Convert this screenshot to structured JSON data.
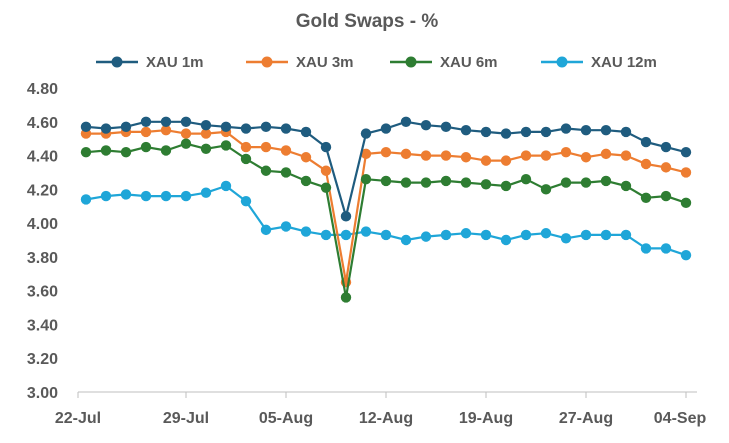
{
  "chart_data": {
    "type": "line",
    "title": "Gold Swaps - %",
    "xlabel": "",
    "ylabel": "",
    "ylim": [
      3.0,
      4.8
    ],
    "yticks": [
      "4.80",
      "4.60",
      "4.40",
      "4.20",
      "4.00",
      "3.80",
      "3.60",
      "3.40",
      "3.20",
      "3.00"
    ],
    "x_tick_labels": [
      "22-Jul",
      "29-Jul",
      "05-Aug",
      "12-Aug",
      "19-Aug",
      "27-Aug",
      "04-Sep"
    ],
    "x_tick_positions": [
      0,
      5,
      10,
      15,
      20,
      25,
      30
    ],
    "x_count": 31,
    "legend_position": "top",
    "grid": false,
    "series": [
      {
        "name": "XAU 1m",
        "color": "#1f5c7f",
        "values": [
          4.57,
          4.56,
          4.57,
          4.6,
          4.6,
          4.6,
          4.58,
          4.57,
          4.56,
          4.57,
          4.56,
          4.54,
          4.45,
          4.04,
          4.53,
          4.56,
          4.6,
          4.58,
          4.57,
          4.55,
          4.54,
          4.53,
          4.54,
          4.54,
          4.56,
          4.55,
          4.55,
          4.54,
          4.48,
          4.45,
          4.42
        ]
      },
      {
        "name": "XAU 3m",
        "color": "#ed7d31",
        "values": [
          4.53,
          4.53,
          4.54,
          4.54,
          4.55,
          4.53,
          4.53,
          4.54,
          4.45,
          4.45,
          4.43,
          4.39,
          4.31,
          3.65,
          4.41,
          4.42,
          4.41,
          4.4,
          4.4,
          4.39,
          4.37,
          4.37,
          4.4,
          4.4,
          4.42,
          4.39,
          4.41,
          4.4,
          4.35,
          4.33,
          4.3
        ]
      },
      {
        "name": "XAU 6m",
        "color": "#2e7d32",
        "values": [
          4.42,
          4.43,
          4.42,
          4.45,
          4.43,
          4.47,
          4.44,
          4.46,
          4.38,
          4.31,
          4.3,
          4.25,
          4.21,
          3.56,
          4.26,
          4.25,
          4.24,
          4.24,
          4.25,
          4.24,
          4.23,
          4.22,
          4.26,
          4.2,
          4.24,
          4.24,
          4.25,
          4.22,
          4.15,
          4.16,
          4.12
        ]
      },
      {
        "name": "XAU 12m",
        "color": "#1fa6d8",
        "values": [
          4.14,
          4.16,
          4.17,
          4.16,
          4.16,
          4.16,
          4.18,
          4.22,
          4.13,
          3.96,
          3.98,
          3.95,
          3.93,
          3.93,
          3.95,
          3.93,
          3.9,
          3.92,
          3.93,
          3.94,
          3.93,
          3.9,
          3.93,
          3.94,
          3.91,
          3.93,
          3.93,
          3.93,
          3.85,
          3.85,
          3.81
        ]
      }
    ]
  }
}
